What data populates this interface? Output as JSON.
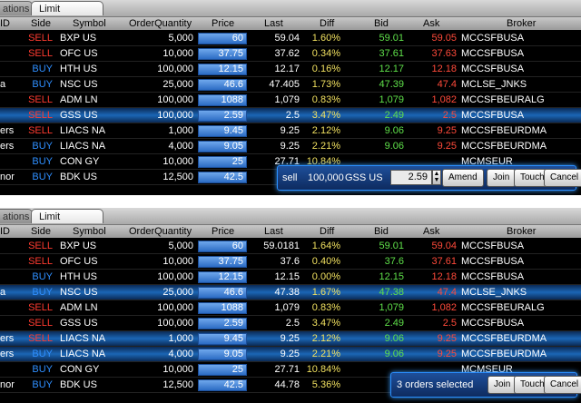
{
  "tabs": {
    "inactive": "ations",
    "active": "Limit Monitor"
  },
  "columns": [
    "ID",
    "Side",
    "Symbol",
    "OrderQuantity",
    "Price",
    "Last",
    "Diff",
    "Bid",
    "Ask",
    "Broker"
  ],
  "top_rows": [
    {
      "id": "",
      "side": "SELL",
      "symbol": "BXP US",
      "qty": "5,000",
      "price": "60",
      "last": "59.04",
      "diff": "1.60%",
      "bid": "59.01",
      "ask": "59.05",
      "broker": "MCCSFBUSA"
    },
    {
      "id": "",
      "side": "SELL",
      "symbol": "OFC US",
      "qty": "10,000",
      "price": "37.75",
      "last": "37.62",
      "diff": "0.34%",
      "bid": "37.61",
      "ask": "37.63",
      "broker": "MCCSFBUSA"
    },
    {
      "id": "",
      "side": "BUY",
      "symbol": "HTH US",
      "qty": "100,000",
      "price": "12.15",
      "last": "12.17",
      "diff": "0.16%",
      "bid": "12.17",
      "ask": "12.18",
      "broker": "MCCSFBUSA"
    },
    {
      "id": "a",
      "side": "BUY",
      "symbol": "NSC US",
      "qty": "25,000",
      "price": "46.6",
      "last": "47.405",
      "diff": "1.73%",
      "bid": "47.39",
      "ask": "47.4",
      "broker": "MCLSE_JNKS"
    },
    {
      "id": "",
      "side": "SELL",
      "symbol": "ADM LN",
      "qty": "100,000",
      "price": "1088",
      "last": "1,079",
      "diff": "0.83%",
      "bid": "1,079",
      "ask": "1,082",
      "broker": "MCCSFBEURALG"
    },
    {
      "id": "",
      "side": "SELL",
      "symbol": "GSS US",
      "qty": "100,000",
      "price": "2.59",
      "last": "2.5",
      "diff": "3.47%",
      "bid": "2.49",
      "ask": "2.5",
      "broker": "MCCSFBUSA"
    },
    {
      "id": "ers",
      "side": "SELL",
      "symbol": "LIACS NA",
      "qty": "1,000",
      "price": "9.45",
      "last": "9.25",
      "diff": "2.12%",
      "bid": "9.06",
      "ask": "9.25",
      "broker": "MCCSFBEURDMA"
    },
    {
      "id": "ers",
      "side": "BUY",
      "symbol": "LIACS NA",
      "qty": "4,000",
      "price": "9.05",
      "last": "9.25",
      "diff": "2.21%",
      "bid": "9.06",
      "ask": "9.25",
      "broker": "MCCSFBEURDMA"
    },
    {
      "id": "",
      "side": "BUY",
      "symbol": "CON GY",
      "qty": "10,000",
      "price": "25",
      "last": "27.71",
      "diff": "10.84%",
      "bid": "",
      "ask": "",
      "broker": "MCMSEUR"
    },
    {
      "id": "nor",
      "side": "BUY",
      "symbol": "BDK US",
      "qty": "12,500",
      "price": "42.5",
      "last": "",
      "diff": "",
      "bid": "",
      "ask": "",
      "broker": ""
    }
  ],
  "bottom_rows": [
    {
      "id": "",
      "side": "SELL",
      "symbol": "BXP US",
      "qty": "5,000",
      "price": "60",
      "last": "59.0181",
      "diff": "1.64%",
      "bid": "59.01",
      "ask": "59.04",
      "broker": "MCCSFBUSA"
    },
    {
      "id": "",
      "side": "SELL",
      "symbol": "OFC US",
      "qty": "10,000",
      "price": "37.75",
      "last": "37.6",
      "diff": "0.40%",
      "bid": "37.6",
      "ask": "37.61",
      "broker": "MCCSFBUSA"
    },
    {
      "id": "",
      "side": "BUY",
      "symbol": "HTH US",
      "qty": "100,000",
      "price": "12.15",
      "last": "12.15",
      "diff": "0.00%",
      "bid": "12.15",
      "ask": "12.18",
      "broker": "MCCSFBUSA"
    },
    {
      "id": "a",
      "side": "BUY",
      "symbol": "NSC US",
      "qty": "25,000",
      "price": "46.6",
      "last": "47.38",
      "diff": "1.67%",
      "bid": "47.38",
      "ask": "47.4",
      "broker": "MCLSE_JNKS"
    },
    {
      "id": "",
      "side": "SELL",
      "symbol": "ADM LN",
      "qty": "100,000",
      "price": "1088",
      "last": "1,079",
      "diff": "0.83%",
      "bid": "1,079",
      "ask": "1,082",
      "broker": "MCCSFBEURALG"
    },
    {
      "id": "",
      "side": "SELL",
      "symbol": "GSS US",
      "qty": "100,000",
      "price": "2.59",
      "last": "2.5",
      "diff": "3.47%",
      "bid": "2.49",
      "ask": "2.5",
      "broker": "MCCSFBUSA"
    },
    {
      "id": "ers",
      "side": "SELL",
      "symbol": "LIACS NA",
      "qty": "1,000",
      "price": "9.45",
      "last": "9.25",
      "diff": "2.12%",
      "bid": "9.06",
      "ask": "9.25",
      "broker": "MCCSFBEURDMA"
    },
    {
      "id": "ers",
      "side": "BUY",
      "symbol": "LIACS NA",
      "qty": "4,000",
      "price": "9.05",
      "last": "9.25",
      "diff": "2.21%",
      "bid": "9.06",
      "ask": "9.25",
      "broker": "MCCSFBEURDMA"
    },
    {
      "id": "",
      "side": "BUY",
      "symbol": "CON GY",
      "qty": "10,000",
      "price": "25",
      "last": "27.71",
      "diff": "10.84%",
      "bid": "",
      "ask": "",
      "broker": "MCMSEUR"
    },
    {
      "id": "nor",
      "side": "BUY",
      "symbol": "BDK US",
      "qty": "12,500",
      "price": "42.5",
      "last": "44.78",
      "diff": "5.36%",
      "bid": "",
      "ask": "",
      "broker": ""
    }
  ],
  "top_selected": [
    5
  ],
  "bottom_selected": [
    3,
    6,
    7
  ],
  "popup_top": {
    "side": "sell",
    "qty": "100,000",
    "symbol": "GSS US",
    "price": "2.59",
    "amend": "Amend",
    "join": "Join",
    "touch": "Touch",
    "cancel": "Cancel"
  },
  "popup_bottom": {
    "status": "3 orders selected",
    "join": "Join",
    "touch": "Touch",
    "cancel": "Cancel"
  },
  "colors": {
    "sell": "#ff3b30",
    "buy": "#2f8fff",
    "diff": "#f0e060",
    "bid": "#5fe04a",
    "ask": "#ff4a3a",
    "selected": "#1b66b5"
  }
}
